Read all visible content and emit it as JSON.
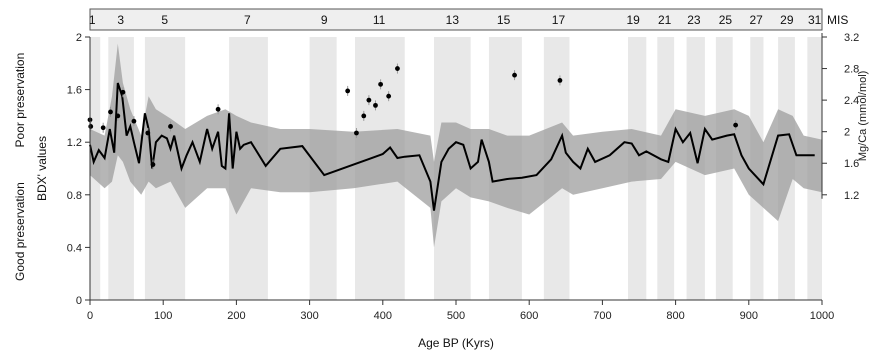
{
  "chart_data": {
    "type": "line",
    "xlabel": "Age BP (Kyrs)",
    "ylabel": "BDX' values",
    "y2label": "Mg/Ca (mmol/mol)",
    "annotation_top": "Poor preservation",
    "annotation_bottom": "Good preservation",
    "mis_label": "MIS",
    "xlim": [
      0,
      1000
    ],
    "ylim": [
      0,
      2
    ],
    "x_ticks": [
      0,
      100,
      200,
      300,
      400,
      500,
      600,
      700,
      800,
      900,
      1000
    ],
    "y_ticks": [
      0,
      0.4,
      0.8,
      1.2,
      1.6,
      2
    ],
    "y_tick_labels": [
      "0",
      "0.4",
      "0.8",
      "1.2",
      "1.6",
      "2"
    ],
    "y2_ticks": [
      1.2,
      1.6,
      2,
      2.4,
      2.8,
      3.2
    ],
    "y2_tick_labels": [
      "1.2",
      "1.6",
      "2",
      "2.4",
      "2.8",
      "3.2"
    ],
    "y2_mapping": {
      "value_at_y_0_8": 1.2,
      "value_at_y_2_0": 3.2
    },
    "mis_stages": [
      {
        "label": "1",
        "label_x": 3
      },
      {
        "label": "3",
        "label_x": 42
      },
      {
        "label": "5",
        "label_x": 102
      },
      {
        "label": "7",
        "label_x": 215
      },
      {
        "label": "9",
        "label_x": 320
      },
      {
        "label": "11",
        "label_x": 395
      },
      {
        "label": "13",
        "label_x": 495
      },
      {
        "label": "15",
        "label_x": 565
      },
      {
        "label": "17",
        "label_x": 640
      },
      {
        "label": "19",
        "label_x": 742
      },
      {
        "label": "21",
        "label_x": 785
      },
      {
        "label": "23",
        "label_x": 825
      },
      {
        "label": "25",
        "label_x": 868
      },
      {
        "label": "27",
        "label_x": 910
      },
      {
        "label": "29",
        "label_x": 952
      },
      {
        "label": "31",
        "label_x": 990
      }
    ],
    "mis_bands": [
      [
        0,
        14
      ],
      [
        25,
        60
      ],
      [
        75,
        130
      ],
      [
        190,
        243
      ],
      [
        300,
        337
      ],
      [
        362,
        430
      ],
      [
        470,
        520
      ],
      [
        545,
        590
      ],
      [
        620,
        655
      ],
      [
        735,
        760
      ],
      [
        775,
        798
      ],
      [
        815,
        840
      ],
      [
        855,
        878
      ],
      [
        902,
        920
      ],
      [
        940,
        963
      ],
      [
        980,
        1000
      ]
    ],
    "series": [
      {
        "name": "BDX'",
        "x": [
          0,
          5,
          12,
          20,
          27,
          33,
          38,
          44,
          50,
          55,
          60,
          67,
          75,
          80,
          85,
          90,
          98,
          105,
          110,
          115,
          125,
          132,
          140,
          150,
          160,
          167,
          175,
          180,
          185,
          190,
          195,
          200,
          205,
          210,
          220,
          240,
          260,
          290,
          320,
          340,
          360,
          380,
          400,
          410,
          420,
          430,
          450,
          465,
          470,
          480,
          490,
          500,
          510,
          520,
          530,
          535,
          545,
          550,
          570,
          590,
          610,
          630,
          645,
          650,
          660,
          670,
          680,
          690,
          710,
          730,
          740,
          750,
          760,
          780,
          790,
          800,
          810,
          820,
          830,
          840,
          850,
          870,
          880,
          890,
          900,
          920,
          940,
          955,
          965,
          975,
          990
        ],
        "y": [
          1.18,
          1.05,
          1.14,
          1.08,
          1.3,
          1.12,
          1.65,
          1.55,
          1.25,
          1.32,
          1.2,
          1.04,
          1.42,
          1.3,
          1.0,
          1.2,
          1.25,
          1.23,
          1.15,
          1.25,
          1.0,
          1.1,
          1.2,
          1.05,
          1.3,
          1.15,
          1.28,
          1.02,
          1.0,
          1.42,
          1.0,
          1.28,
          1.15,
          1.18,
          1.2,
          1.02,
          1.15,
          1.17,
          0.95,
          0.99,
          1.03,
          1.07,
          1.11,
          1.16,
          1.08,
          1.09,
          1.1,
          0.9,
          0.68,
          1.05,
          1.15,
          1.2,
          1.18,
          1.0,
          1.05,
          1.22,
          1.05,
          0.9,
          0.92,
          0.93,
          0.95,
          1.07,
          1.25,
          1.12,
          1.05,
          1.0,
          1.15,
          1.05,
          1.1,
          1.2,
          1.19,
          1.1,
          1.13,
          1.07,
          1.05,
          1.3,
          1.2,
          1.27,
          1.04,
          1.3,
          1.22,
          1.25,
          1.26,
          1.1,
          1.0,
          0.88,
          1.25,
          1.26,
          1.1,
          1.1,
          1.1
        ]
      },
      {
        "name": "BDX' envelope upper",
        "x": [
          0,
          20,
          30,
          38,
          45,
          55,
          70,
          80,
          90,
          110,
          130,
          160,
          185,
          200,
          220,
          260,
          300,
          360,
          420,
          465,
          470,
          480,
          500,
          520,
          545,
          570,
          600,
          645,
          660,
          700,
          740,
          780,
          800,
          840,
          880,
          900,
          920,
          940,
          960,
          975,
          1000
        ],
        "y": [
          1.3,
          1.25,
          1.55,
          1.95,
          1.65,
          1.45,
          1.25,
          1.55,
          1.45,
          1.38,
          1.3,
          1.4,
          1.45,
          1.4,
          1.35,
          1.3,
          1.3,
          1.28,
          1.3,
          1.25,
          1.05,
          1.35,
          1.35,
          1.3,
          1.3,
          1.25,
          1.25,
          1.35,
          1.25,
          1.28,
          1.3,
          1.25,
          1.45,
          1.4,
          1.45,
          1.4,
          1.2,
          1.45,
          1.4,
          1.25,
          1.22
        ]
      },
      {
        "name": "BDX' envelope lower",
        "x": [
          0,
          20,
          30,
          38,
          45,
          55,
          70,
          80,
          90,
          110,
          130,
          160,
          185,
          200,
          220,
          260,
          300,
          360,
          420,
          465,
          470,
          480,
          500,
          520,
          545,
          570,
          600,
          645,
          660,
          700,
          740,
          780,
          800,
          840,
          880,
          900,
          920,
          940,
          960,
          975,
          1000
        ],
        "y": [
          0.95,
          0.85,
          0.9,
          1.1,
          1.05,
          0.9,
          0.8,
          0.9,
          0.85,
          0.9,
          0.7,
          0.85,
          0.85,
          0.65,
          0.85,
          0.82,
          0.82,
          0.85,
          0.9,
          0.7,
          0.4,
          0.75,
          0.85,
          0.78,
          0.75,
          0.7,
          0.65,
          0.85,
          0.8,
          0.85,
          0.9,
          0.92,
          1.05,
          0.95,
          1.0,
          0.8,
          0.7,
          0.6,
          0.92,
          0.85,
          0.82
        ]
      },
      {
        "name": "Mg/Ca",
        "marker": "point",
        "x": [
          0,
          1,
          18,
          28,
          38,
          45,
          60,
          79,
          86,
          110,
          175,
          352,
          364,
          374,
          381,
          390,
          397,
          408,
          420,
          580,
          642,
          882
        ],
        "y": [
          1.37,
          1.32,
          1.31,
          1.43,
          1.4,
          1.58,
          1.36,
          1.27,
          1.03,
          1.32,
          1.45,
          1.59,
          1.27,
          1.4,
          1.52,
          1.48,
          1.64,
          1.55,
          1.76,
          1.71,
          1.67,
          1.33
        ]
      }
    ]
  }
}
